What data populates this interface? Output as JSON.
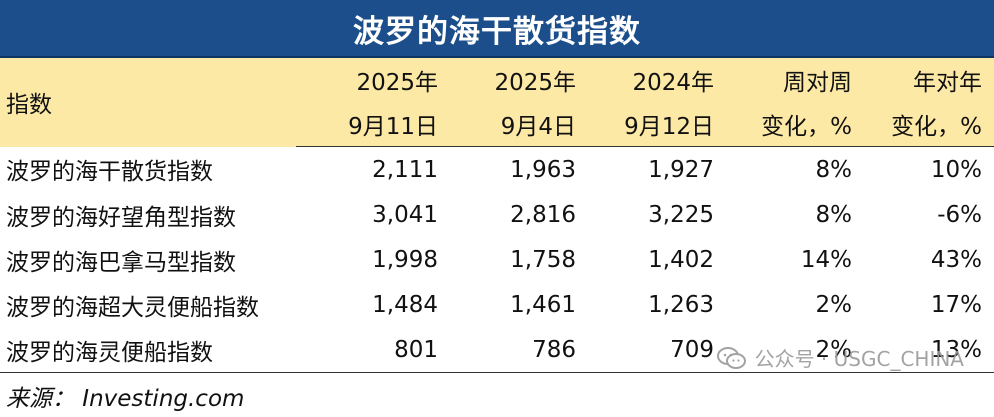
{
  "title": "波罗的海干散货指数",
  "header": {
    "label": "指数",
    "col1": [
      "2025年",
      "9月11日"
    ],
    "col2": [
      "2025年",
      "9月4日"
    ],
    "col3": [
      "2024年",
      "9月12日"
    ],
    "col4": [
      "周对周",
      "变化，%"
    ],
    "col5": [
      "年对年",
      "变化，%"
    ]
  },
  "rows": [
    {
      "name": "波罗的海干散货指数",
      "v1": "2,111",
      "v2": "1,963",
      "v3": "1,927",
      "wow": "8%",
      "yoy": "10%"
    },
    {
      "name": "波罗的海好望角型指数",
      "v1": "3,041",
      "v2": "2,816",
      "v3": "3,225",
      "wow": "8%",
      "yoy": "-6%"
    },
    {
      "name": "波罗的海巴拿马型指数",
      "v1": "1,998",
      "v2": "1,758",
      "v3": "1,402",
      "wow": "14%",
      "yoy": "43%"
    },
    {
      "name": "波罗的海超大灵便船指数",
      "v1": "1,484",
      "v2": "1,461",
      "v3": "1,263",
      "wow": "2%",
      "yoy": "17%"
    },
    {
      "name": "波罗的海灵便船指数",
      "v1": "801",
      "v2": "786",
      "v3": "709",
      "wow": "2%",
      "yoy": "13%"
    }
  ],
  "source": "来源：  Investing.com",
  "watermark": {
    "text": "公众号 · USGC_CHINA",
    "icon": "wechat-icon",
    "color": "#9a9a9a"
  },
  "colors": {
    "title_bg": "#1b4e8a",
    "header_bg": "#fde9a6"
  }
}
